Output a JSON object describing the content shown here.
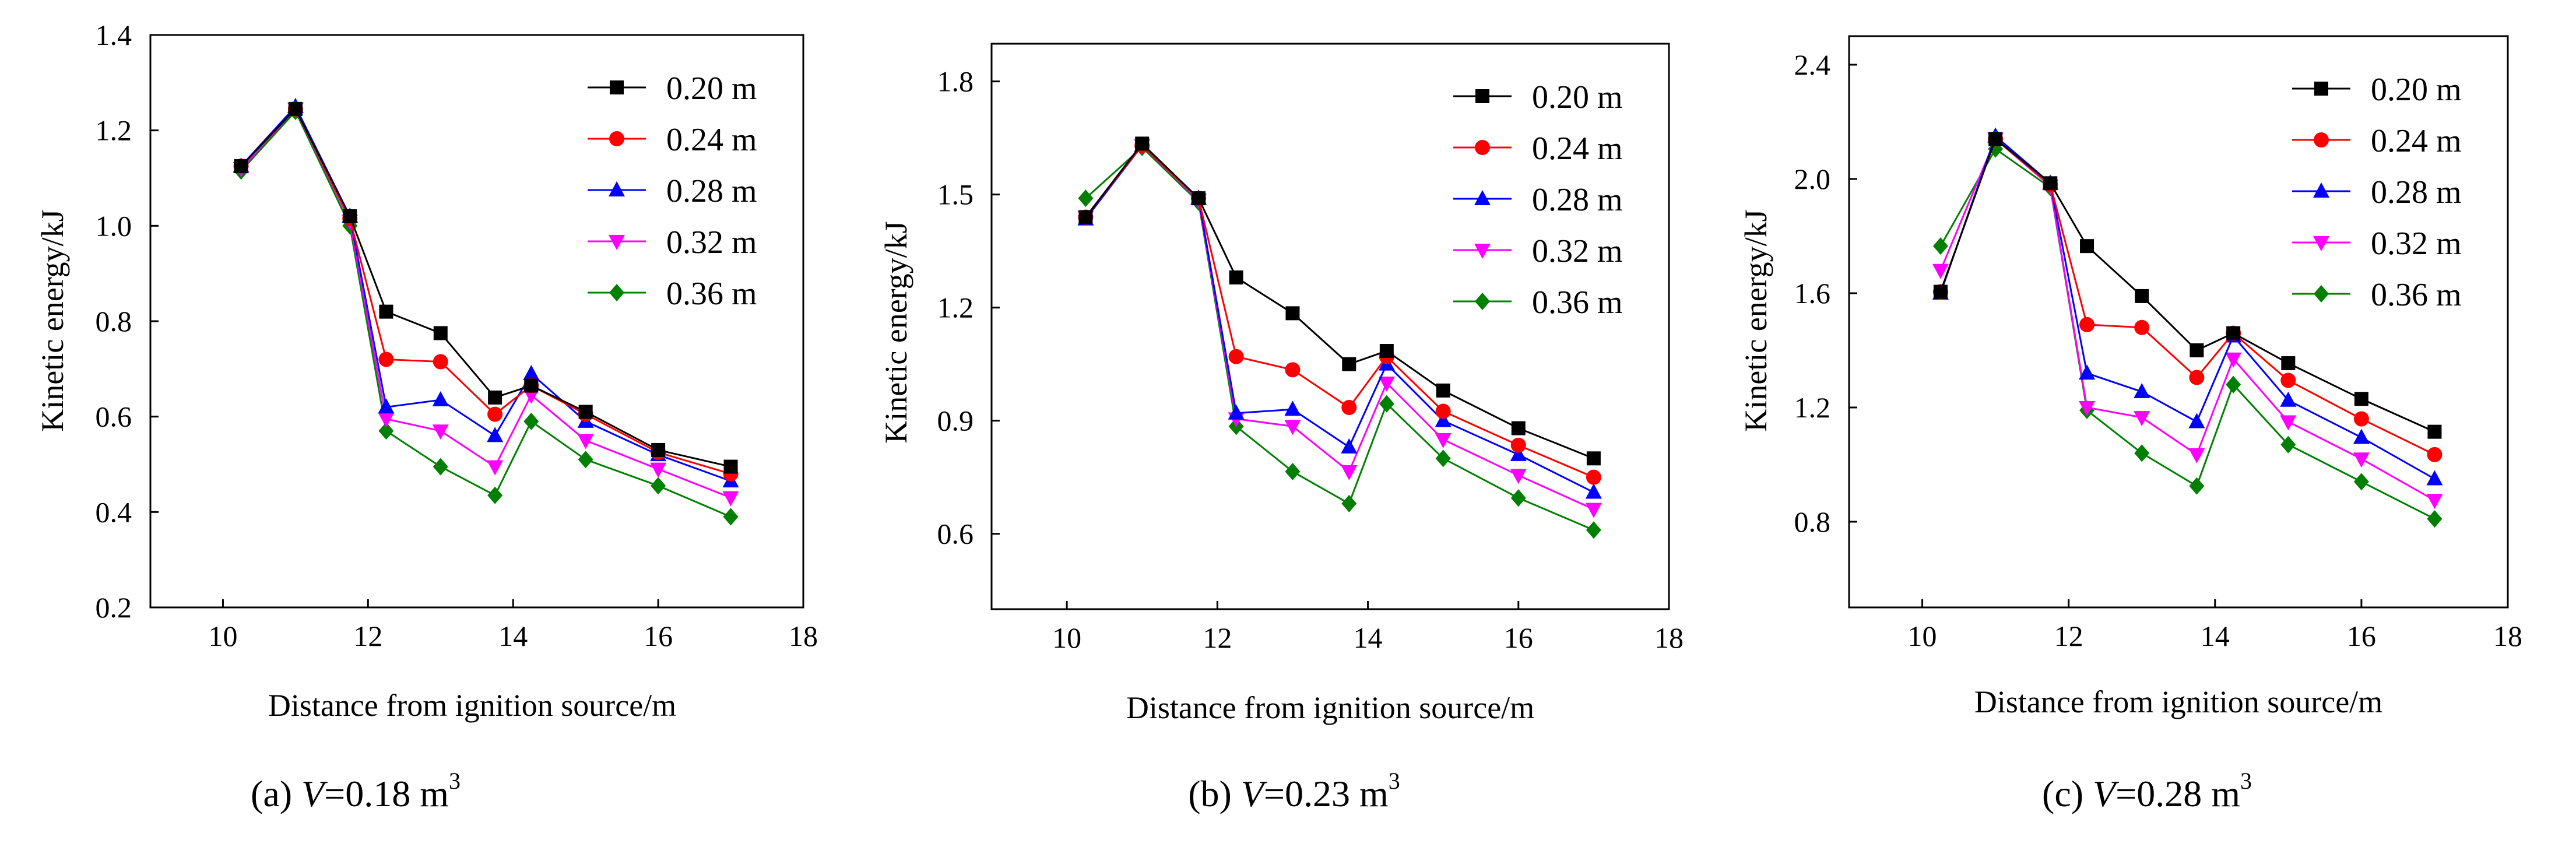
{
  "figure": {
    "background": "#ffffff",
    "series_styles": [
      {
        "color": "#000000",
        "marker": "square"
      },
      {
        "color": "#ff0000",
        "marker": "circle"
      },
      {
        "color": "#0000ff",
        "marker": "triangle-up"
      },
      {
        "color": "#ff00ff",
        "marker": "triangle-down"
      },
      {
        "color": "#008000",
        "marker": "diamond"
      }
    ]
  },
  "chart_data": [
    {
      "type": "line",
      "caption_prefix": "(a) ",
      "caption_var": "V",
      "caption_value": "=0.18 m",
      "caption_sup": "3",
      "xlabel": "Distance from ignition source/m",
      "ylabel": "Kinetic energy/kJ",
      "xlim": [
        9,
        18
      ],
      "ylim": [
        0.2,
        1.4
      ],
      "xticks": [
        10,
        12,
        14,
        16,
        18
      ],
      "yticks": [
        0.2,
        0.4,
        0.6,
        0.8,
        1.0,
        1.2,
        1.4
      ],
      "ytick_labels": [
        "0.2",
        "0.4",
        "0.6",
        "0.8",
        "1.0",
        "1.2",
        "1.4"
      ],
      "legend_position": "top-right",
      "x": [
        10.25,
        11,
        11.75,
        12.25,
        13,
        13.75,
        14.25,
        15,
        16,
        17
      ],
      "series": [
        {
          "name": "0.20 m",
          "values": [
            1.125,
            1.245,
            1.02,
            0.82,
            0.775,
            0.64,
            0.665,
            0.61,
            0.53,
            0.495
          ]
        },
        {
          "name": "0.24 m",
          "values": [
            1.125,
            1.245,
            1.015,
            0.72,
            0.715,
            0.605,
            0.665,
            0.605,
            0.525,
            0.48
          ]
        },
        {
          "name": "0.28 m",
          "values": [
            1.125,
            1.25,
            1.02,
            0.62,
            0.635,
            0.56,
            0.69,
            0.59,
            0.52,
            0.465
          ]
        },
        {
          "name": "0.32 m",
          "values": [
            1.12,
            1.245,
            1.01,
            0.595,
            0.57,
            0.495,
            0.645,
            0.55,
            0.49,
            0.43
          ]
        },
        {
          "name": "0.36 m",
          "values": [
            1.115,
            1.24,
            1.0,
            0.57,
            0.495,
            0.435,
            0.59,
            0.51,
            0.455,
            0.39
          ]
        }
      ]
    },
    {
      "type": "line",
      "caption_prefix": "(b) ",
      "caption_var": "V",
      "caption_value": "=0.23 m",
      "caption_sup": "3",
      "xlabel": "Distance from ignition source/m",
      "ylabel": "Kinetic energy/kJ",
      "xlim": [
        9,
        18
      ],
      "ylim": [
        0.4,
        1.9
      ],
      "xticks": [
        10,
        12,
        14,
        16,
        18
      ],
      "yticks": [
        0.6,
        0.9,
        1.2,
        1.5,
        1.8
      ],
      "ytick_labels": [
        "0.6",
        "0.9",
        "1.2",
        "1.5",
        "1.8"
      ],
      "legend_position": "top-right",
      "x": [
        10.25,
        11,
        11.75,
        12.25,
        13,
        13.75,
        14.25,
        15,
        16,
        17
      ],
      "series": [
        {
          "name": "0.20 m",
          "values": [
            1.44,
            1.635,
            1.49,
            1.28,
            1.185,
            1.05,
            1.085,
            0.98,
            0.88,
            0.8
          ]
        },
        {
          "name": "0.24 m",
          "values": [
            1.44,
            1.63,
            1.49,
            1.07,
            1.035,
            0.935,
            1.07,
            0.925,
            0.835,
            0.75
          ]
        },
        {
          "name": "0.28 m",
          "values": [
            1.435,
            1.63,
            1.49,
            0.92,
            0.93,
            0.83,
            1.05,
            0.9,
            0.81,
            0.71
          ]
        },
        {
          "name": "0.32 m",
          "values": [
            1.44,
            1.63,
            1.485,
            0.905,
            0.885,
            0.765,
            1.0,
            0.85,
            0.755,
            0.665
          ]
        },
        {
          "name": "0.36 m",
          "values": [
            1.49,
            1.625,
            1.48,
            0.885,
            0.765,
            0.68,
            0.945,
            0.8,
            0.695,
            0.61
          ]
        }
      ]
    },
    {
      "type": "line",
      "caption_prefix": "(c) ",
      "caption_var": "V",
      "caption_value": "=0.28 m",
      "caption_sup": "3",
      "xlabel": "Distance from ignition source/m",
      "ylabel": "Kinetic energy/kJ",
      "xlim": [
        9,
        18
      ],
      "ylim": [
        0.5,
        2.5
      ],
      "xticks": [
        10,
        12,
        14,
        16,
        18
      ],
      "yticks": [
        0.8,
        1.2,
        1.6,
        2.0,
        2.4
      ],
      "ytick_labels": [
        "0.8",
        "1.2",
        "1.6",
        "2.0",
        "2.4"
      ],
      "legend_position": "top-right",
      "x": [
        10.25,
        11,
        11.75,
        12.25,
        13,
        13.75,
        14.25,
        15,
        16,
        17
      ],
      "series": [
        {
          "name": "0.20 m",
          "values": [
            1.605,
            2.14,
            1.985,
            1.765,
            1.59,
            1.4,
            1.46,
            1.355,
            1.23,
            1.115
          ]
        },
        {
          "name": "0.24 m",
          "values": [
            1.605,
            2.14,
            1.98,
            1.49,
            1.48,
            1.305,
            1.46,
            1.295,
            1.16,
            1.035
          ]
        },
        {
          "name": "0.28 m",
          "values": [
            1.6,
            2.15,
            1.985,
            1.32,
            1.255,
            1.15,
            1.45,
            1.225,
            1.095,
            0.95
          ]
        },
        {
          "name": "0.32 m",
          "values": [
            1.68,
            2.14,
            1.975,
            1.2,
            1.165,
            1.035,
            1.37,
            1.15,
            1.02,
            0.875
          ]
        },
        {
          "name": "0.36 m",
          "values": [
            1.765,
            2.105,
            1.97,
            1.19,
            1.04,
            0.925,
            1.28,
            1.07,
            0.94,
            0.81
          ]
        }
      ]
    }
  ]
}
